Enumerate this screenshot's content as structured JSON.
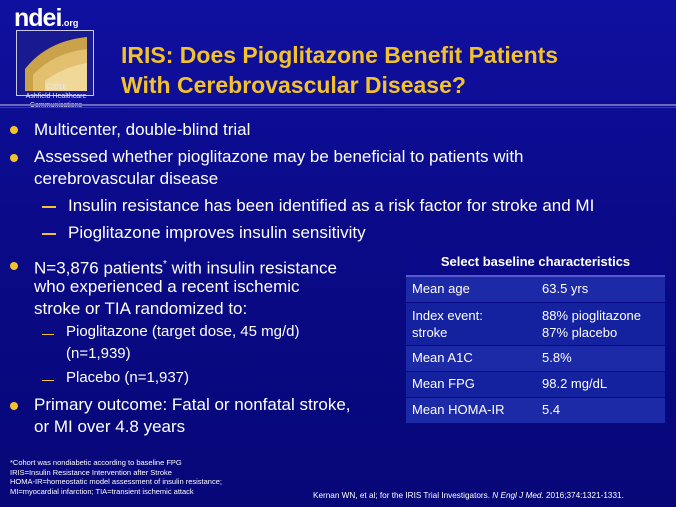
{
  "logo": {
    "word": "ndei",
    "org": ".org",
    "copyright_line1": "©2016",
    "copyright_line2": "Ashfield Healthcare",
    "copyright_line3": "Communications"
  },
  "title": {
    "line1": "IRIS: Does Pioglitazone Benefit Patients",
    "line2": "With Cerebrovascular Disease?"
  },
  "bullets": {
    "b1": "Multicenter, double-blind trial",
    "b2_line1": "Assessed whether pioglitazone may be beneficial to patients with",
    "b2_line2": "cerebrovascular disease",
    "b2_sub1": "Insulin resistance has been identified as a risk factor for stroke and MI",
    "b2_sub2": "Pioglitazone improves insulin sensitivity",
    "b3_line1_a": "N=3,876 patients",
    "b3_line1_sup": "*",
    "b3_line1_b": " with insulin resistance",
    "b3_line2": "who experienced a  recent ischemic",
    "b3_line3": "stroke or TIA randomized to:",
    "b3_sub1_line1": "Pioglitazone (target dose, 45 mg/d)",
    "b3_sub1_line2": "(n=1,939)",
    "b3_sub2": "Placebo (n=1,937)",
    "b4_line1": "Primary outcome: Fatal or nonfatal stroke,",
    "b4_line2": "or MI over 4.8 years"
  },
  "table": {
    "header": "Select baseline characteristics",
    "rows": [
      {
        "label": "Mean age",
        "value": "63.5 yrs"
      },
      {
        "label1": "Index event:",
        "label2": "stroke",
        "value1": "88% pioglitazone",
        "value2": "87% placebo"
      },
      {
        "label": "Mean A1C",
        "value": "5.8%"
      },
      {
        "label": "Mean FPG",
        "value": "98.2 mg/dL"
      },
      {
        "label": "Mean HOMA-IR",
        "value": "5.4"
      }
    ]
  },
  "footnote": {
    "l1": "*Cohort was nondiabetic according to baseline FPG",
    "l2": "IRIS=Insulin Resistance Intervention after Stroke",
    "l3": "HOMA-IR=homeostatic model assessment of insulin resistance;",
    "l4": "MI=myocardial infarction; TIA=transient ischemic attack"
  },
  "citation": {
    "authors": "Kernan WN, et al; for the IRIS Trial Investigators. ",
    "journal": "N Engl J Med.",
    "ref": " 2016;374:1321-1331."
  },
  "colors": {
    "background": "#0a0a8c",
    "accent": "#f2c228",
    "table_row": "#1d2aa8"
  }
}
